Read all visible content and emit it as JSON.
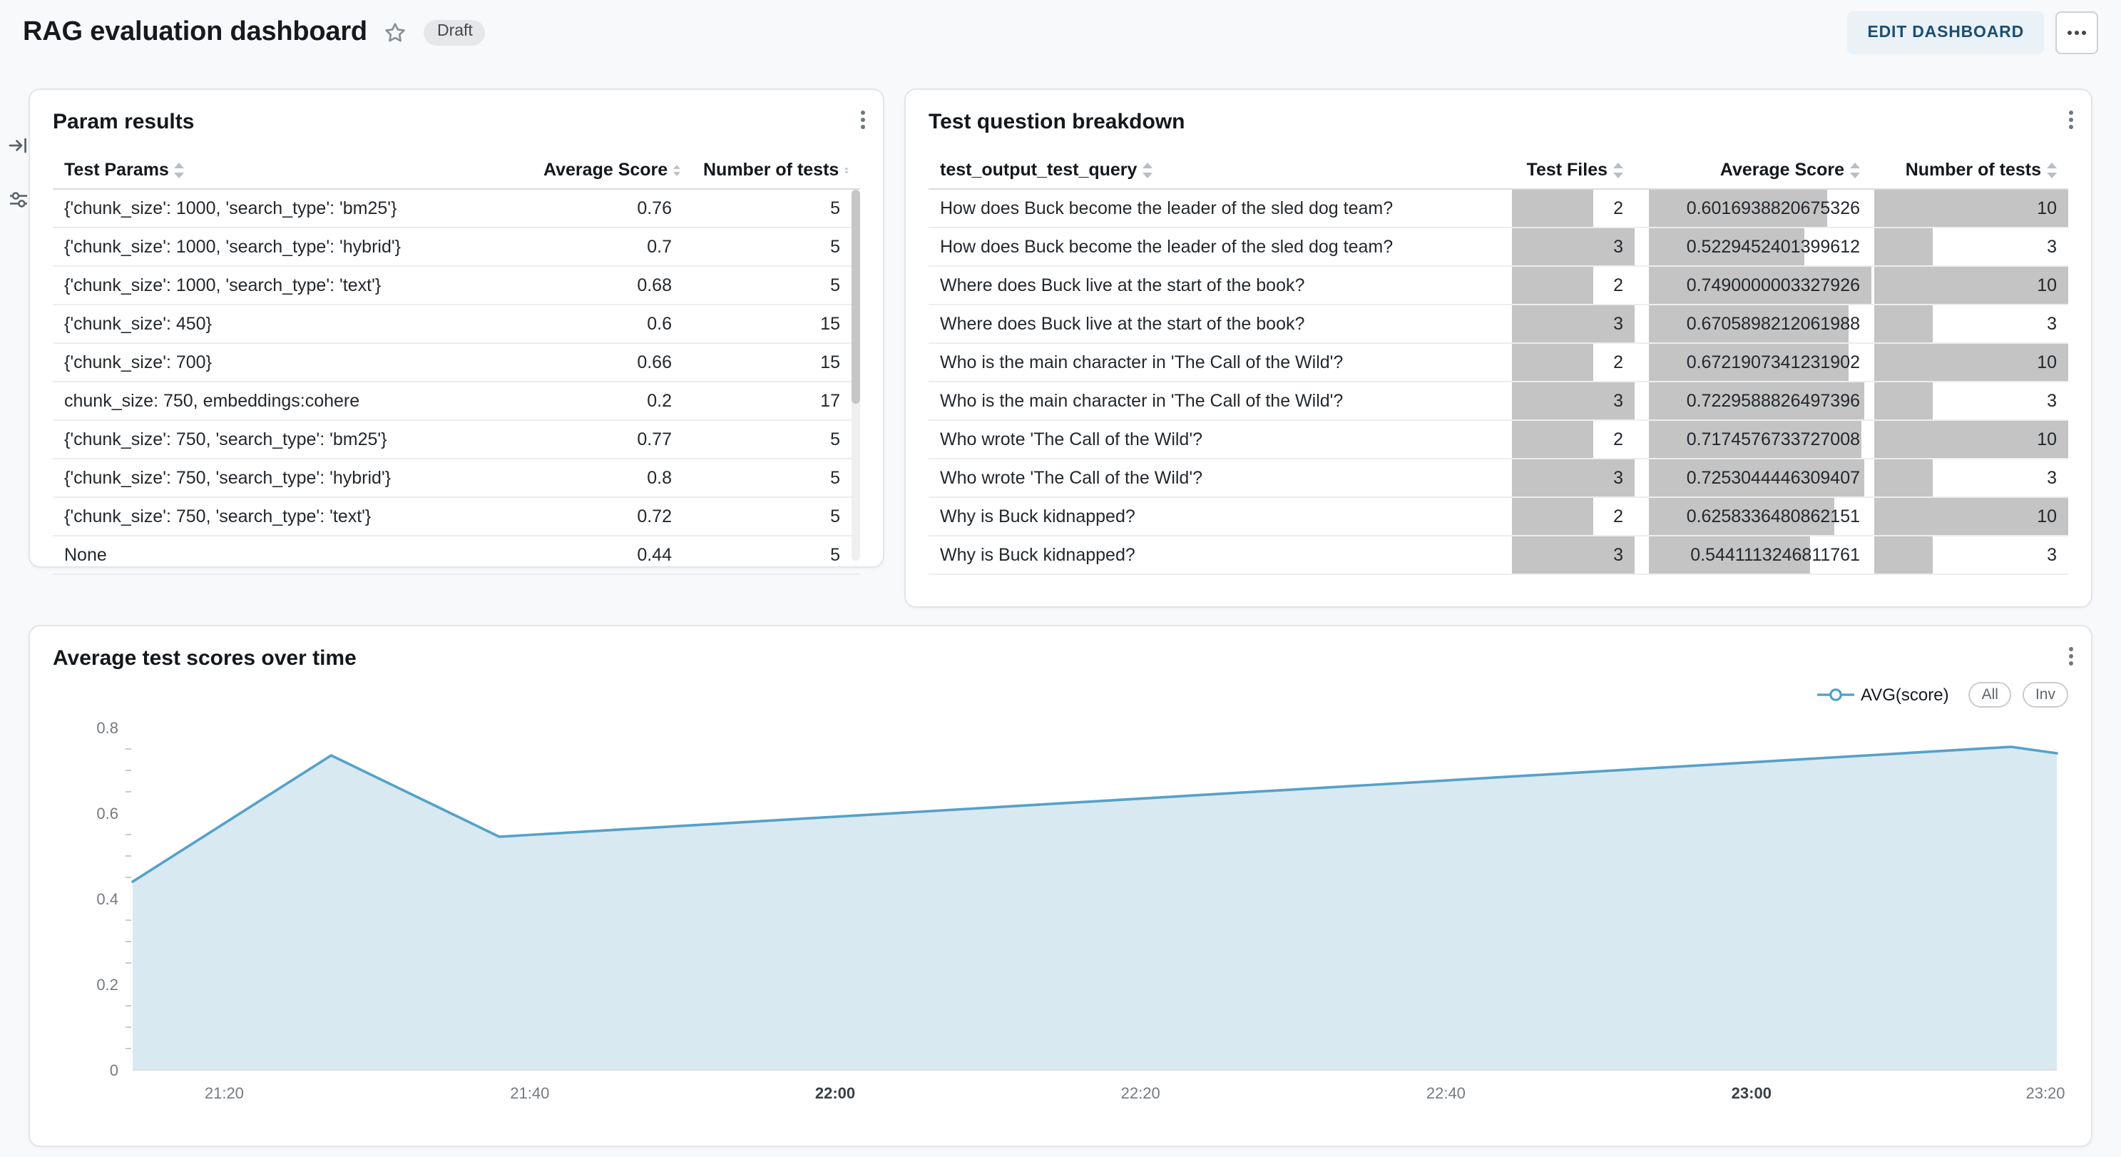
{
  "header": {
    "title": "RAG evaluation dashboard",
    "draft_badge": "Draft",
    "edit_button": "EDIT DASHBOARD"
  },
  "param_results": {
    "title": "Param results",
    "columns": [
      "Test Params",
      "Average Score",
      "Number of tests"
    ],
    "rows": [
      {
        "params": "{'chunk_size': 1000, 'search_type': 'bm25'}",
        "score": "0.76",
        "tests": "5"
      },
      {
        "params": "{'chunk_size': 1000, 'search_type': 'hybrid'}",
        "score": "0.7",
        "tests": "5"
      },
      {
        "params": "{'chunk_size': 1000, 'search_type': 'text'}",
        "score": "0.68",
        "tests": "5"
      },
      {
        "params": "{'chunk_size': 450}",
        "score": "0.6",
        "tests": "15"
      },
      {
        "params": "{'chunk_size': 700}",
        "score": "0.66",
        "tests": "15"
      },
      {
        "params": "chunk_size: 750, embeddings:cohere",
        "score": "0.2",
        "tests": "17"
      },
      {
        "params": "{'chunk_size': 750, 'search_type': 'bm25'}",
        "score": "0.77",
        "tests": "5"
      },
      {
        "params": "{'chunk_size': 750, 'search_type': 'hybrid'}",
        "score": "0.8",
        "tests": "5"
      },
      {
        "params": "{'chunk_size': 750, 'search_type': 'text'}",
        "score": "0.72",
        "tests": "5"
      },
      {
        "params": "None",
        "score": "0.44",
        "tests": "5"
      }
    ]
  },
  "question_breakdown": {
    "title": "Test question breakdown",
    "columns": [
      "test_output_test_query",
      "Test Files",
      "Average Score",
      "Number of tests"
    ],
    "bar_color": "#c4c4c4",
    "max": {
      "files": 3,
      "score": 0.7490000003327926,
      "tests": 10
    },
    "rows": [
      {
        "query": "How does Buck become the leader of the sled dog team?",
        "files": 2,
        "score": "0.6016938820675326",
        "tests": 10
      },
      {
        "query": "How does Buck become the leader of the sled dog team?",
        "files": 3,
        "score": "0.5229452401399612",
        "tests": 3
      },
      {
        "query": "Where does Buck live at the start of the book?",
        "files": 2,
        "score": "0.7490000003327926",
        "tests": 10
      },
      {
        "query": "Where does Buck live at the start of the book?",
        "files": 3,
        "score": "0.6705898212061988",
        "tests": 3
      },
      {
        "query": "Who is the main character in 'The Call of the Wild'?",
        "files": 2,
        "score": "0.6721907341231902",
        "tests": 10
      },
      {
        "query": "Who is the main character in 'The Call of the Wild'?",
        "files": 3,
        "score": "0.7229588826497396",
        "tests": 3
      },
      {
        "query": "Who wrote 'The Call of the Wild'?",
        "files": 2,
        "score": "0.7174576733727008",
        "tests": 10
      },
      {
        "query": "Who wrote 'The Call of the Wild'?",
        "files": 3,
        "score": "0.7253044446309407",
        "tests": 3
      },
      {
        "query": "Why is Buck kidnapped?",
        "files": 2,
        "score": "0.6258336480862151",
        "tests": 10
      },
      {
        "query": "Why is Buck kidnapped?",
        "files": 3,
        "score": "0.5441113246811761",
        "tests": 3
      }
    ]
  },
  "scores_chart": {
    "title": "Average test scores over time",
    "legend": {
      "series_label": "AVG(score)",
      "all_label": "All",
      "invert_label": "Inv"
    }
  },
  "chart_data": {
    "type": "area",
    "title": "Average test scores over time",
    "series": [
      {
        "name": "AVG(score)",
        "points": [
          [
            "21:14",
            0.44
          ],
          [
            "21:27",
            0.735
          ],
          [
            "21:38",
            0.545
          ],
          [
            "23:17",
            0.755
          ],
          [
            "23:20",
            0.74
          ]
        ]
      }
    ],
    "x_range": [
      "21:14",
      "23:20"
    ],
    "xticks": [
      "21:20",
      "21:40",
      "22:00",
      "22:20",
      "22:40",
      "23:00",
      "23:20"
    ],
    "bold_xticks": [
      "22:00",
      "23:00"
    ],
    "ylim": [
      0,
      0.8
    ],
    "yticks": [
      0,
      0.2,
      0.4,
      0.6,
      0.8
    ],
    "minor_tick_step": 0.05,
    "grid": false,
    "legend_position": "top-right",
    "line_color": "#55a1c9",
    "fill_color": "#d9e9f2"
  }
}
